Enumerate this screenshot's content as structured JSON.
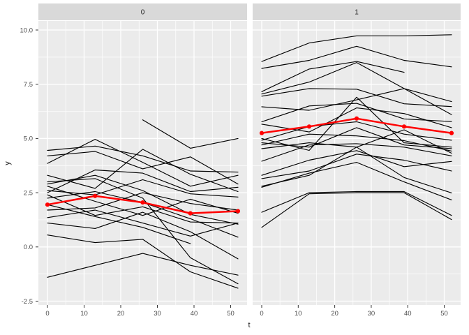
{
  "chart_data": {
    "type": "line",
    "description": "Faceted spaghetti plot of individual trajectories y over time t with red mean curve per facet",
    "facet_labels": [
      "0",
      "1"
    ],
    "xlabel": "t",
    "ylabel": "y",
    "t": [
      0,
      13,
      26,
      39,
      52
    ],
    "x_axis_ticks": [
      0,
      10,
      20,
      30,
      40,
      50
    ],
    "x_axis_minor": [
      5,
      15,
      25,
      35,
      45
    ],
    "y_axis_ticks": [
      10.0,
      7.5,
      5.0,
      2.5,
      0.0,
      -2.5
    ],
    "y_axis_tick_labels": [
      "10.0",
      "7.5",
      "5.0",
      "2.5",
      "0.0",
      "-2.5"
    ],
    "y_axis_minor": [
      8.75,
      6.25,
      3.75,
      1.25,
      -1.25
    ],
    "x_range": [
      0,
      52
    ],
    "y_range": [
      -2.5,
      10.0
    ],
    "grid": true,
    "legend": "none",
    "panels": [
      {
        "label": "0",
        "mean_series": [
          1.95,
          2.35,
          2.05,
          1.55,
          1.65
        ],
        "lines": [
          [
            4.45,
            4.65,
            4.2,
            3.5,
            3.45
          ],
          [
            4.2,
            4.4,
            3.6,
            4.15,
            2.9
          ],
          [
            3.85,
            4.96,
            3.9,
            2.8,
            3.3
          ],
          [
            3.3,
            2.7,
            4.5,
            3.35,
            2.55
          ],
          [
            2.9,
            3.3,
            2.6,
            1.5,
            1.05
          ],
          [
            2.6,
            2.4,
            3.1,
            2.45,
            2.3
          ],
          [
            2.5,
            3.55,
            3.4,
            2.55,
            2.75
          ],
          [
            2.4,
            1.45,
            1.85,
            1.15,
            1.1
          ],
          [
            2.25,
            2.55,
            2.05,
            1.3,
            0.45
          ],
          [
            1.95,
            1.4,
            0.9,
            0.15,
            null
          ],
          [
            1.7,
            1.8,
            2.5,
            2.0,
            1.7
          ],
          [
            1.35,
            1.7,
            1.1,
            0.5,
            1.1
          ],
          [
            1.1,
            0.85,
            1.6,
            0.7,
            -0.55
          ],
          [
            0.55,
            0.2,
            0.35,
            -1.15,
            -1.9
          ],
          [
            -1.4,
            -0.85,
            -0.3,
            -0.85,
            -1.3
          ],
          [
            2.8,
            2.1,
            1.45,
            2.2,
            1.55
          ],
          [
            3.0,
            3.15,
            2.25,
            -0.5,
            -1.7
          ],
          [
            null,
            null,
            5.86,
            4.55,
            5.0
          ]
        ]
      },
      {
        "label": "1",
        "mean_series": [
          5.25,
          5.55,
          5.92,
          5.55,
          5.25
        ],
        "lines": [
          [
            8.55,
            9.4,
            9.73,
            9.73,
            9.78
          ],
          [
            8.23,
            8.6,
            9.25,
            8.6,
            8.3
          ],
          [
            7.16,
            8.2,
            8.55,
            8.05,
            null
          ],
          [
            7.05,
            7.6,
            8.5,
            7.3,
            6.7
          ],
          [
            6.95,
            7.3,
            7.27,
            6.6,
            6.47
          ],
          [
            6.46,
            6.3,
            6.78,
            7.3,
            6.1
          ],
          [
            5.77,
            6.5,
            6.62,
            5.9,
            5.78
          ],
          [
            5.66,
            5.3,
            6.41,
            6.15,
            5.5
          ],
          [
            5.0,
            4.45,
            6.9,
            4.8,
            4.6
          ],
          [
            4.92,
            5.55,
            5.77,
            5.2,
            4.92
          ],
          [
            4.8,
            4.6,
            5.5,
            4.7,
            4.53
          ],
          [
            4.7,
            5.2,
            5.12,
            4.9,
            4.42
          ],
          [
            4.53,
            4.8,
            4.6,
            5.4,
            4.32
          ],
          [
            3.95,
            4.7,
            4.76,
            4.6,
            4.2
          ],
          [
            3.3,
            4.0,
            4.44,
            3.7,
            3.94
          ],
          [
            3.15,
            3.5,
            4.28,
            4.0,
            3.5
          ],
          [
            2.8,
            3.3,
            4.6,
            3.2,
            2.49
          ],
          [
            2.75,
            3.4,
            3.9,
            3.0,
            2.17
          ],
          [
            1.6,
            2.5,
            2.55,
            2.55,
            1.45
          ],
          [
            0.9,
            2.45,
            2.5,
            2.5,
            1.26
          ]
        ]
      }
    ],
    "colors": {
      "panel_background": "#EBEBEB",
      "strip_background": "#D9D9D9",
      "gridline": "#FFFFFF",
      "trajectory": "#000000",
      "mean_line": "#FF0000",
      "axis_text": "#4D4D4D",
      "tick_mark": "#333333"
    }
  }
}
